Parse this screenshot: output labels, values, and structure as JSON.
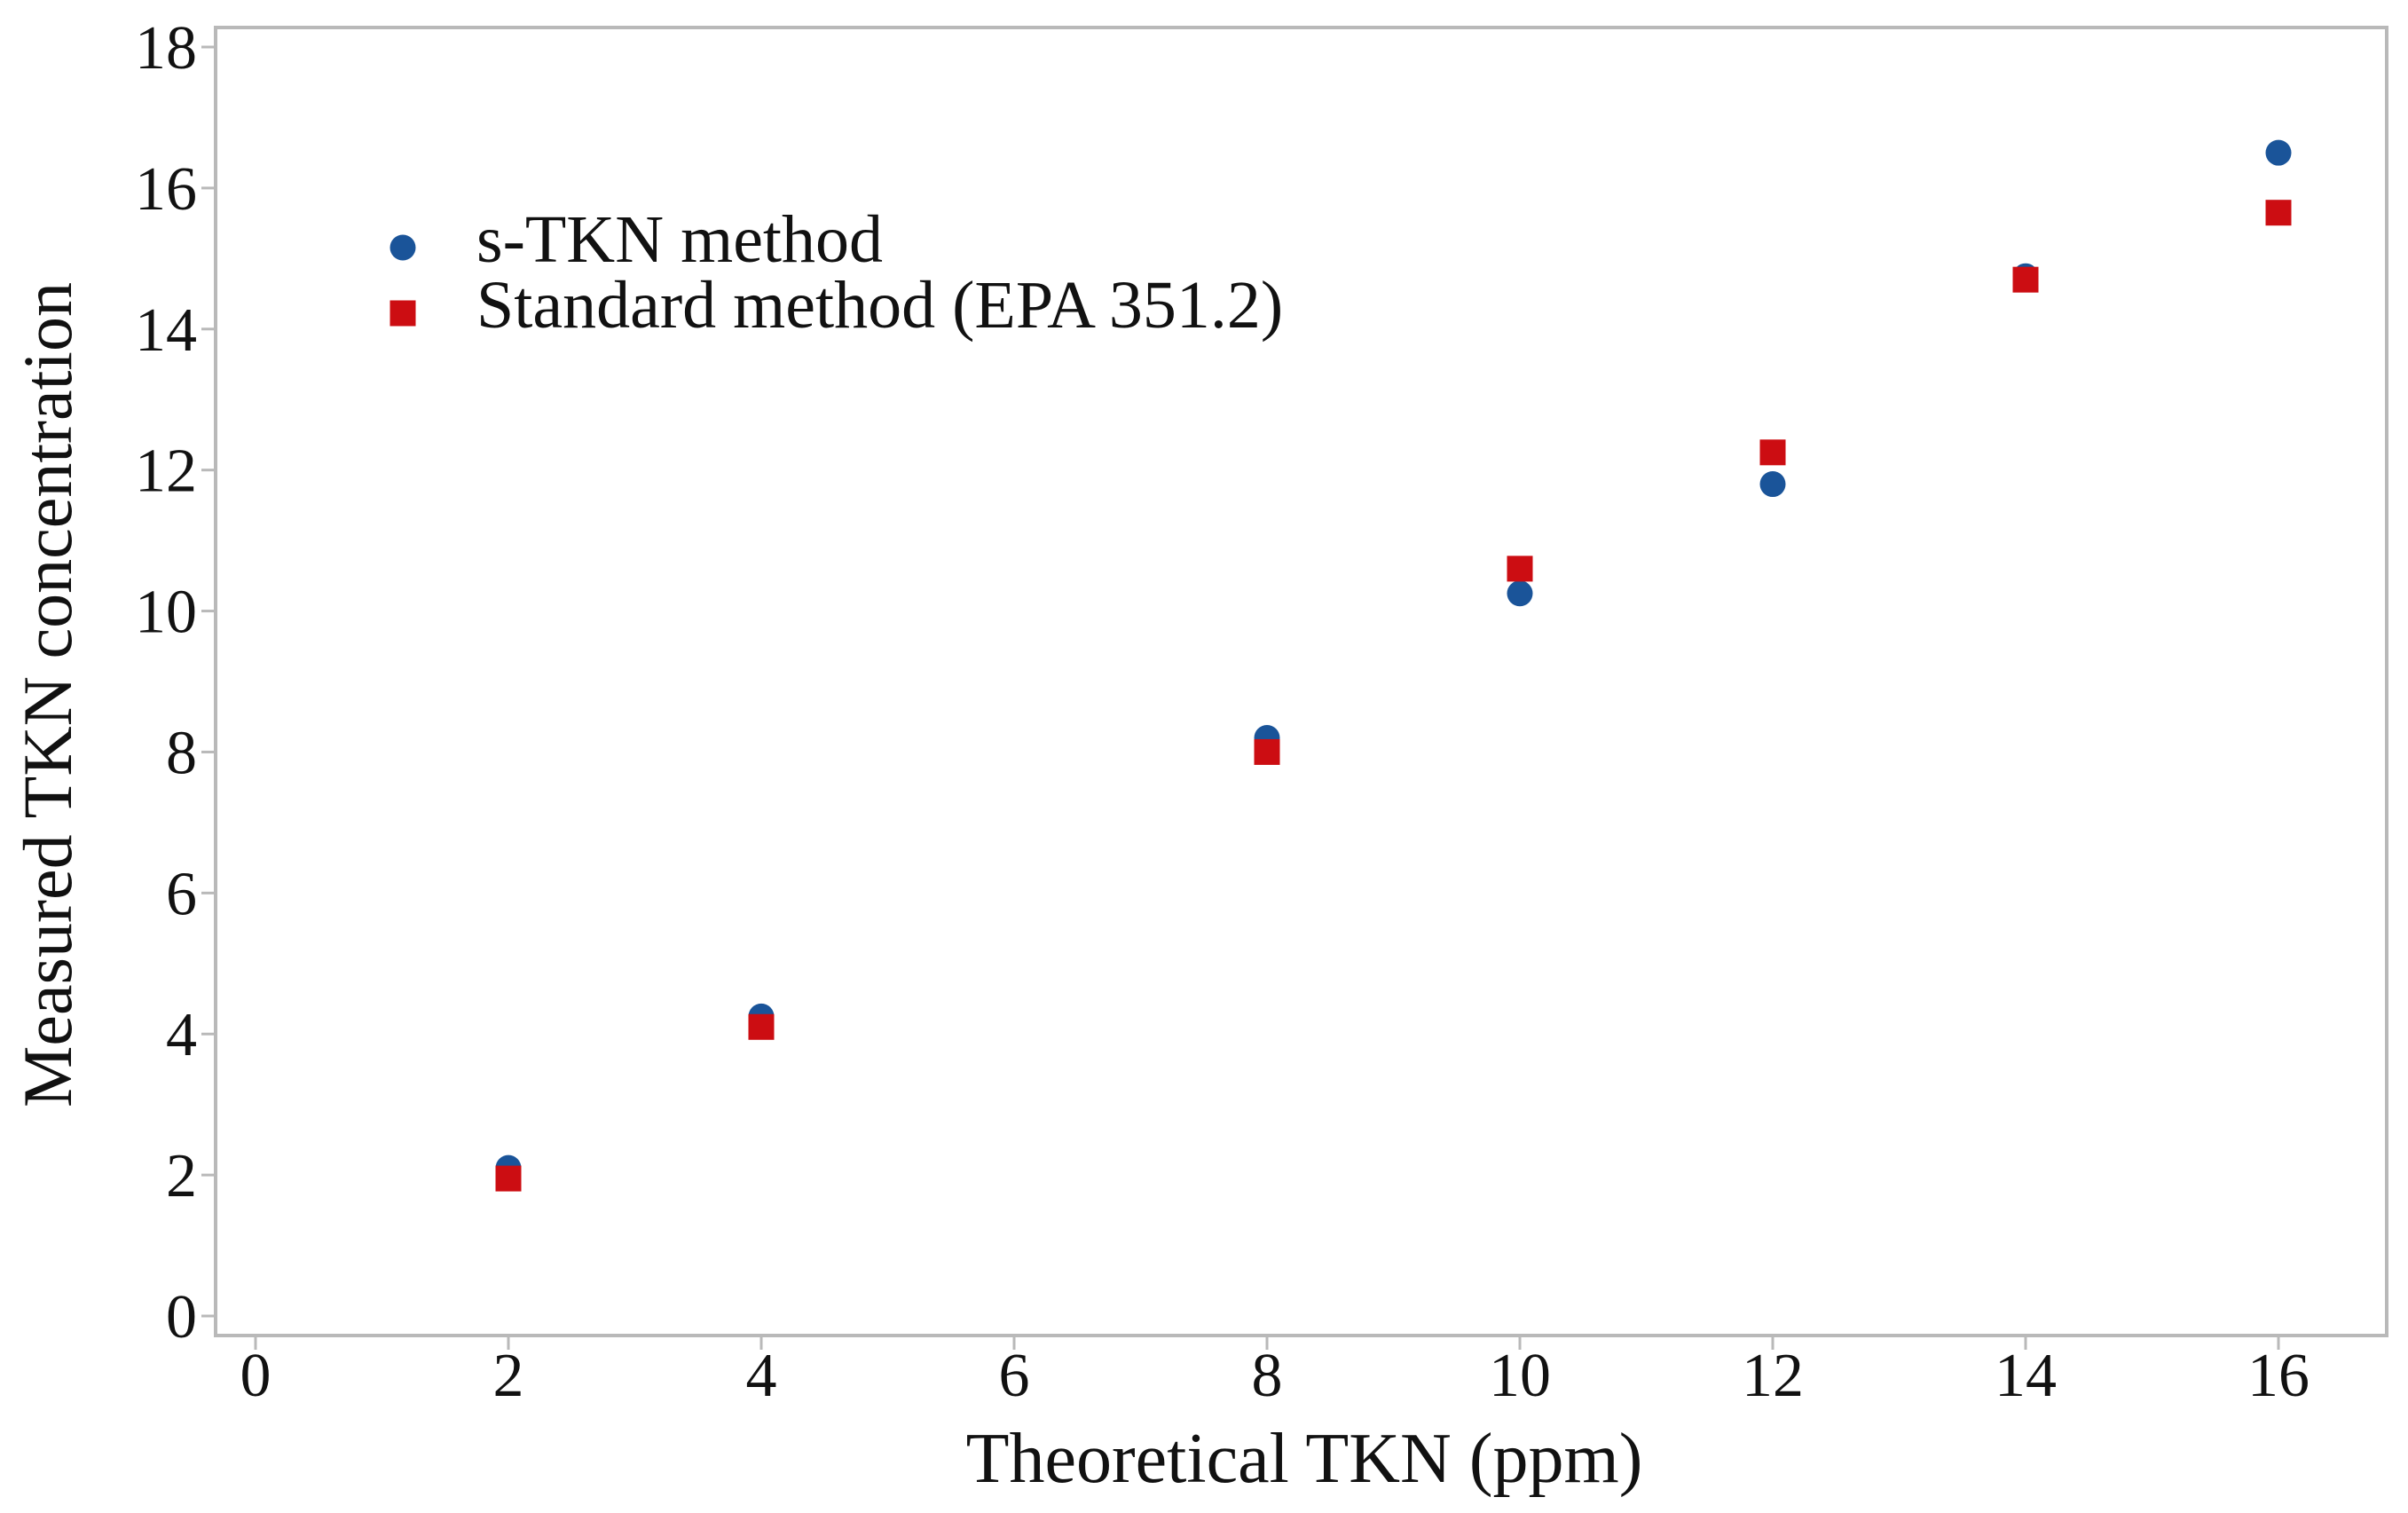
{
  "chart_data": {
    "type": "scatter",
    "title": "",
    "xlabel": "Theoretical TKN (ppm)",
    "ylabel": "Measured TKN concentration",
    "xlim": [
      0,
      16
    ],
    "ylim": [
      0,
      18
    ],
    "x_ticks": [
      0,
      2,
      4,
      6,
      8,
      10,
      12,
      14,
      16
    ],
    "y_ticks": [
      0,
      2,
      4,
      6,
      8,
      10,
      12,
      14,
      16,
      18
    ],
    "grid": false,
    "legend_position": "inside-top-left",
    "background_color": "#ffffff",
    "axis_color": "#b9b9b9",
    "text_color": "#111111",
    "series": [
      {
        "name": "s-TKN method",
        "marker": "circle",
        "color": "#1A5499",
        "points": [
          [
            2,
            2.1
          ],
          [
            4,
            4.25
          ],
          [
            8,
            8.2
          ],
          [
            10,
            10.25
          ],
          [
            12,
            11.8
          ],
          [
            14,
            14.75
          ],
          [
            16,
            16.5
          ]
        ]
      },
      {
        "name": "Standard method (EPA 351.2)",
        "marker": "square",
        "color": "#CC0D12",
        "points": [
          [
            2,
            1.95
          ],
          [
            4,
            4.1
          ],
          [
            8,
            8.0
          ],
          [
            10,
            10.6
          ],
          [
            12,
            12.25
          ],
          [
            14,
            14.7
          ],
          [
            16,
            15.65
          ]
        ]
      }
    ]
  }
}
